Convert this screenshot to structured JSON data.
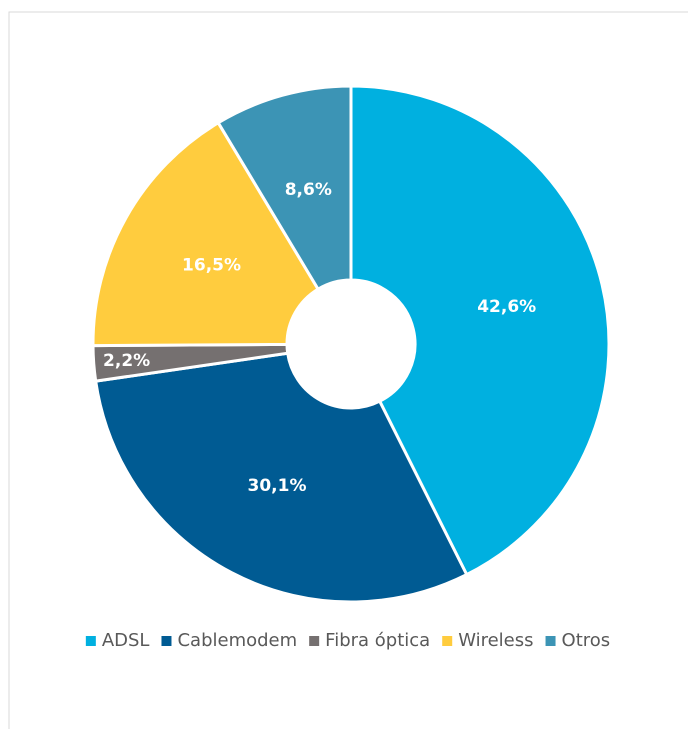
{
  "chart_data": {
    "type": "pie",
    "donut": true,
    "categories": [
      "ADSL",
      "Cablemodem",
      "Fibra óptica",
      "Wireless",
      "Otros"
    ],
    "values": [
      42.6,
      30.1,
      2.2,
      16.5,
      8.6
    ],
    "value_labels": [
      "42,6%",
      "30,1%",
      "2,2%",
      "16,5%",
      "8,6%"
    ],
    "colors": [
      "#00b0e0",
      "#005b93",
      "#757070",
      "#ffcc3e",
      "#3c94b5"
    ],
    "legend": "bottom"
  }
}
